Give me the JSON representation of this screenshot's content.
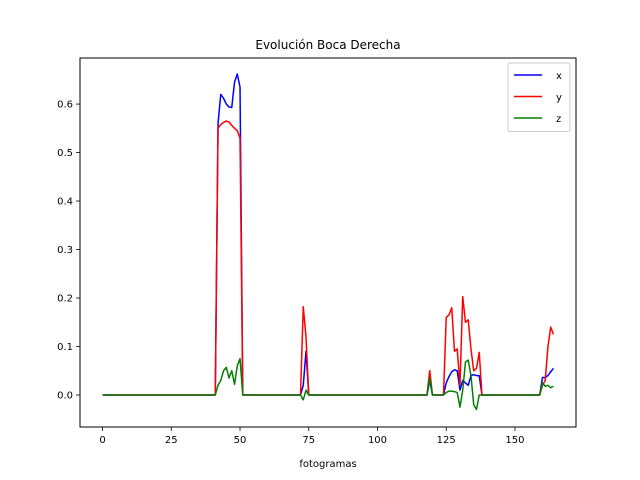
{
  "chart_data": {
    "type": "line",
    "title": "Evolución Boca Derecha",
    "xlabel": "fotogramas",
    "ylabel": "",
    "xlim": [
      -8.2,
      172.2
    ],
    "ylim": [
      -0.066,
      0.695
    ],
    "xticks": [
      0,
      25,
      50,
      75,
      100,
      125,
      150
    ],
    "yticks": [
      0.0,
      0.1,
      0.2,
      0.3,
      0.4,
      0.5,
      0.6
    ],
    "grid": false,
    "legend": "top-right",
    "series": [
      {
        "name": "x",
        "color": "#0000ff",
        "points": [
          [
            0,
            0
          ],
          [
            41,
            0
          ],
          [
            42,
            0.56
          ],
          [
            43,
            0.62
          ],
          [
            44,
            0.612
          ],
          [
            45,
            0.6
          ],
          [
            46,
            0.594
          ],
          [
            47,
            0.593
          ],
          [
            48,
            0.645
          ],
          [
            49,
            0.662
          ],
          [
            50,
            0.635
          ],
          [
            51,
            0
          ],
          [
            72,
            0
          ],
          [
            73,
            0.02
          ],
          [
            74,
            0.09
          ],
          [
            75,
            0
          ],
          [
            118,
            0
          ],
          [
            119,
            0.03
          ],
          [
            120,
            0
          ],
          [
            124,
            0
          ],
          [
            125,
            0.025
          ],
          [
            126,
            0.038
          ],
          [
            127,
            0.048
          ],
          [
            128,
            0.052
          ],
          [
            129,
            0.05
          ],
          [
            130,
            0.01
          ],
          [
            131,
            0.03
          ],
          [
            132,
            0.025
          ],
          [
            133,
            0.02
          ],
          [
            134,
            0.04
          ],
          [
            135,
            0.042
          ],
          [
            136,
            0.04
          ],
          [
            137,
            0.04
          ],
          [
            138,
            0
          ],
          [
            159,
            0
          ],
          [
            160,
            0.036
          ],
          [
            161,
            0.036
          ],
          [
            162,
            0.04
          ],
          [
            163,
            0.048
          ],
          [
            164,
            0.055
          ]
        ]
      },
      {
        "name": "y",
        "color": "#ff0000",
        "points": [
          [
            0,
            0
          ],
          [
            41,
            0
          ],
          [
            42,
            0.55
          ],
          [
            43,
            0.558
          ],
          [
            44,
            0.562
          ],
          [
            45,
            0.565
          ],
          [
            46,
            0.563
          ],
          [
            47,
            0.556
          ],
          [
            48,
            0.55
          ],
          [
            49,
            0.545
          ],
          [
            50,
            0.53
          ],
          [
            51,
            0
          ],
          [
            72,
            0
          ],
          [
            73,
            0.182
          ],
          [
            74,
            0.12
          ],
          [
            75,
            0
          ],
          [
            118,
            0
          ],
          [
            119,
            0.05
          ],
          [
            120,
            0
          ],
          [
            124,
            0
          ],
          [
            125,
            0.16
          ],
          [
            126,
            0.165
          ],
          [
            127,
            0.18
          ],
          [
            128,
            0.09
          ],
          [
            129,
            0.095
          ],
          [
            130,
            0.02
          ],
          [
            131,
            0.203
          ],
          [
            132,
            0.15
          ],
          [
            133,
            0.155
          ],
          [
            134,
            0.095
          ],
          [
            135,
            0.05
          ],
          [
            136,
            0.055
          ],
          [
            137,
            0.088
          ],
          [
            138,
            0
          ],
          [
            159,
            0
          ],
          [
            160,
            0.02
          ],
          [
            161,
            0.03
          ],
          [
            162,
            0.1
          ],
          [
            163,
            0.14
          ],
          [
            164,
            0.125
          ]
        ]
      },
      {
        "name": "z",
        "color": "#008000",
        "points": [
          [
            0,
            0
          ],
          [
            41,
            0
          ],
          [
            42,
            0.02
          ],
          [
            43,
            0.03
          ],
          [
            44,
            0.05
          ],
          [
            45,
            0.057
          ],
          [
            46,
            0.035
          ],
          [
            47,
            0.05
          ],
          [
            48,
            0.022
          ],
          [
            49,
            0.06
          ],
          [
            50,
            0.075
          ],
          [
            51,
            0
          ],
          [
            72,
            0
          ],
          [
            73,
            -0.01
          ],
          [
            74,
            0.01
          ],
          [
            75,
            0
          ],
          [
            118,
            0
          ],
          [
            119,
            0.035
          ],
          [
            120,
            0
          ],
          [
            124,
            0
          ],
          [
            125,
            0.005
          ],
          [
            126,
            0.008
          ],
          [
            127,
            0.008
          ],
          [
            128,
            0.007
          ],
          [
            129,
            0.005
          ],
          [
            130,
            -0.025
          ],
          [
            131,
            0.01
          ],
          [
            132,
            0.068
          ],
          [
            133,
            0.072
          ],
          [
            134,
            0.04
          ],
          [
            135,
            -0.02
          ],
          [
            136,
            -0.03
          ],
          [
            137,
            0
          ],
          [
            138,
            0
          ],
          [
            159,
            0
          ],
          [
            160,
            0.025
          ],
          [
            161,
            0.018
          ],
          [
            162,
            0.02
          ],
          [
            163,
            0.015
          ],
          [
            164,
            0.018
          ]
        ]
      }
    ]
  }
}
